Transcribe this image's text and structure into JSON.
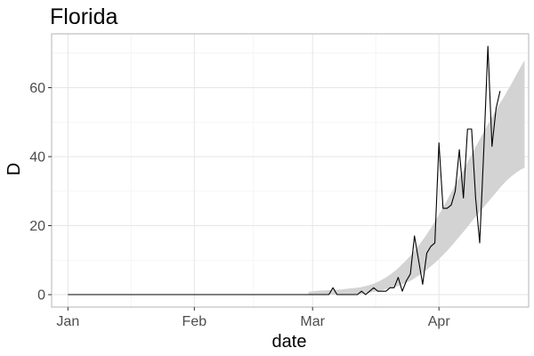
{
  "chart_data": {
    "type": "line",
    "title": "Florida",
    "xlabel": "date",
    "ylabel": "D",
    "x_start": "2020-01-01",
    "xlim": [
      "2019-12-28",
      "2020-04-23"
    ],
    "ylim": [
      -3.6,
      75.6
    ],
    "x_ticks": [
      {
        "date": "2020-01-01",
        "label": "Jan"
      },
      {
        "date": "2020-02-01",
        "label": "Feb"
      },
      {
        "date": "2020-03-01",
        "label": "Mar"
      },
      {
        "date": "2020-04-01",
        "label": "Apr"
      }
    ],
    "y_ticks": [
      0,
      20,
      40,
      60
    ],
    "grid": true,
    "colors": {
      "line": "#000000",
      "band": "#d3d3d3",
      "panel_border": "#b3b3b3",
      "grid_major": "#e6e6e6",
      "grid_minor": "#f2f2f2"
    },
    "series": [
      {
        "values": [
          0,
          0,
          0,
          0,
          0,
          0,
          0,
          0,
          0,
          0,
          0,
          0,
          0,
          0,
          0,
          0,
          0,
          0,
          0,
          0,
          0,
          0,
          0,
          0,
          0,
          0,
          0,
          0,
          0,
          0,
          0,
          0,
          0,
          0,
          0,
          0,
          0,
          0,
          0,
          0,
          0,
          0,
          0,
          0,
          0,
          0,
          0,
          0,
          0,
          0,
          0,
          0,
          0,
          0,
          0,
          0,
          0,
          0,
          0,
          0,
          0,
          0,
          0,
          0,
          0,
          2,
          0,
          0,
          0,
          0,
          0,
          0,
          1,
          0,
          1,
          2,
          1,
          1,
          1,
          2,
          2,
          5,
          1,
          4,
          6,
          17,
          10,
          3,
          12,
          14,
          15,
          44,
          25,
          25,
          26,
          30,
          42,
          28,
          48,
          48,
          28,
          15,
          42,
          72,
          43,
          54,
          59
        ]
      }
    ],
    "band": {
      "start": "2020-02-29",
      "lower": [
        0,
        0,
        0,
        0,
        0,
        0,
        0,
        0,
        0,
        0,
        0,
        0,
        0,
        0.2,
        0.4,
        0.6,
        0.8,
        1,
        1.3,
        1.6,
        1.9,
        2.2,
        2.5,
        3,
        3.5,
        4,
        4.7,
        5.5,
        6.3,
        7.2,
        8.2,
        9.2,
        10.3,
        11.5,
        12.7,
        14,
        15.4,
        16.8,
        18.2,
        19.7,
        21.2,
        22.6,
        24,
        25.4,
        26.8,
        28.2,
        29.6,
        31,
        32.3,
        33.5,
        34.5,
        35.4,
        36.2,
        36.8
      ],
      "upper": [
        0.8,
        1,
        1.1,
        1.2,
        1.2,
        1.3,
        1.3,
        1.4,
        1.5,
        1.6,
        1.8,
        1.9,
        2,
        2.2,
        2.5,
        2.8,
        3.2,
        3.7,
        4.3,
        5,
        5.8,
        6.7,
        7.7,
        8.8,
        10,
        11.3,
        12.7,
        14.2,
        15.8,
        17.5,
        19.3,
        21.2,
        23.2,
        25.3,
        27.4,
        29.6,
        31.8,
        34,
        36.2,
        38.4,
        40.6,
        42.8,
        45,
        47.2,
        49.4,
        51.5,
        53.5,
        55.5,
        57.4,
        59.5,
        61.6,
        63.8,
        65.9,
        67.9
      ]
    }
  }
}
